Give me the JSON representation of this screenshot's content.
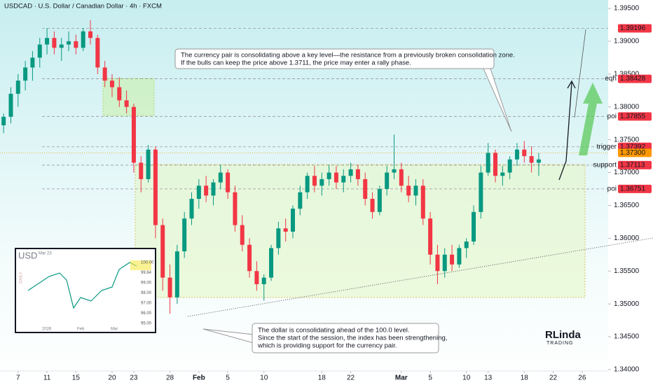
{
  "header": {
    "title": "USDCAD · U.S. Dollar / Canadian Dollar · 4h · FXCM"
  },
  "chart_data": {
    "type": "candlestick",
    "x": [
      5,
      6,
      7,
      8,
      9,
      10,
      11,
      12,
      13,
      14,
      15,
      16,
      17,
      18,
      19,
      20,
      21,
      22,
      23,
      24,
      25,
      26,
      27,
      28,
      29,
      30,
      31,
      32,
      33,
      34,
      35,
      36,
      37,
      38,
      39,
      40,
      41,
      42,
      43,
      44,
      45,
      46,
      47,
      48,
      49,
      50,
      51,
      52,
      53,
      54,
      55,
      56,
      57,
      58,
      59,
      60,
      61,
      62,
      63,
      64,
      65,
      66,
      67,
      68,
      69,
      70,
      71,
      72,
      73,
      74,
      75,
      76,
      77,
      78,
      79
    ],
    "open": [
      1.3772,
      1.3785,
      1.382,
      1.384,
      1.386,
      1.3875,
      1.3895,
      1.3905,
      1.389,
      1.3895,
      1.39,
      1.389,
      1.3915,
      1.3905,
      1.386,
      1.384,
      1.383,
      1.381,
      1.38,
      1.3715,
      1.369,
      1.3735,
      1.362,
      1.354,
      1.351,
      1.358,
      1.363,
      1.366,
      1.368,
      1.3665,
      1.3685,
      1.37,
      1.367,
      1.362,
      1.359,
      1.355,
      1.353,
      1.354,
      1.3585,
      1.3615,
      1.361,
      1.3645,
      1.367,
      1.3695,
      1.368,
      1.369,
      1.37,
      1.3685,
      1.3695,
      1.3705,
      1.369,
      1.366,
      1.364,
      1.3675,
      1.37,
      1.3705,
      1.368,
      1.3665,
      1.368,
      1.363,
      1.3575,
      1.355,
      1.3575,
      1.356,
      1.3585,
      1.3595,
      1.364,
      1.37,
      1.373,
      1.3695,
      1.37,
      1.372,
      1.3735,
      1.3725,
      1.3715
    ],
    "high": [
      1.379,
      1.383,
      1.385,
      1.387,
      1.3885,
      1.3905,
      1.392,
      1.3915,
      1.3905,
      1.3915,
      1.391,
      1.392,
      1.3932,
      1.391,
      1.387,
      1.385,
      1.3845,
      1.3825,
      1.3805,
      1.3725,
      1.3742,
      1.374,
      1.363,
      1.356,
      1.359,
      1.364,
      1.367,
      1.369,
      1.3695,
      1.369,
      1.3712,
      1.3705,
      1.368,
      1.3635,
      1.36,
      1.3565,
      1.3545,
      1.359,
      1.3625,
      1.363,
      1.365,
      1.368,
      1.37,
      1.371,
      1.37,
      1.3712,
      1.371,
      1.3705,
      1.3715,
      1.3712,
      1.37,
      1.367,
      1.368,
      1.371,
      1.3758,
      1.3715,
      1.3695,
      1.369,
      1.369,
      1.364,
      1.359,
      1.3585,
      1.359,
      1.359,
      1.36,
      1.365,
      1.371,
      1.3745,
      1.3735,
      1.371,
      1.3725,
      1.3745,
      1.3748,
      1.374,
      1.373
    ],
    "low": [
      1.376,
      1.3775,
      1.38,
      1.3825,
      1.384,
      1.386,
      1.388,
      1.388,
      1.387,
      1.3885,
      1.388,
      1.3885,
      1.3895,
      1.385,
      1.383,
      1.3815,
      1.38,
      1.379,
      1.37,
      1.367,
      1.3685,
      1.36,
      1.352,
      1.3485,
      1.35,
      1.357,
      1.362,
      1.3645,
      1.3655,
      1.365,
      1.3675,
      1.366,
      1.361,
      1.358,
      1.354,
      1.352,
      1.3505,
      1.3535,
      1.3575,
      1.3595,
      1.36,
      1.3635,
      1.366,
      1.367,
      1.3665,
      1.368,
      1.3675,
      1.367,
      1.3685,
      1.368,
      1.365,
      1.363,
      1.3635,
      1.3665,
      1.369,
      1.367,
      1.3655,
      1.365,
      1.362,
      1.356,
      1.353,
      1.354,
      1.355,
      1.3555,
      1.357,
      1.359,
      1.363,
      1.3695,
      1.3685,
      1.368,
      1.369,
      1.371,
      1.3715,
      1.37,
      1.3695
    ],
    "close": [
      1.3785,
      1.382,
      1.384,
      1.386,
      1.3875,
      1.3895,
      1.3905,
      1.389,
      1.3895,
      1.39,
      1.389,
      1.3915,
      1.3905,
      1.386,
      1.384,
      1.383,
      1.381,
      1.38,
      1.3715,
      1.369,
      1.3735,
      1.362,
      1.354,
      1.351,
      1.358,
      1.363,
      1.366,
      1.368,
      1.3665,
      1.3685,
      1.37,
      1.367,
      1.362,
      1.359,
      1.355,
      1.353,
      1.354,
      1.3585,
      1.3615,
      1.361,
      1.3645,
      1.367,
      1.3695,
      1.368,
      1.369,
      1.37,
      1.3685,
      1.3695,
      1.3705,
      1.369,
      1.366,
      1.364,
      1.3675,
      1.37,
      1.3705,
      1.368,
      1.3665,
      1.368,
      1.363,
      1.3575,
      1.355,
      1.3575,
      1.356,
      1.3585,
      1.3595,
      1.364,
      1.37,
      1.373,
      1.3695,
      1.37,
      1.372,
      1.3735,
      1.3725,
      1.3715,
      1.372
    ],
    "up_color": "#089981",
    "down_color": "#f23645",
    "xlim": [
      4.5,
      88.6
    ],
    "xticks": [
      7,
      11,
      15,
      20,
      23,
      28,
      {
        "value": 32,
        "label": "Feb"
      },
      {
        "value": 36,
        "label": "5"
      },
      {
        "value": 41,
        "label": "10"
      },
      {
        "value": 49,
        "label": "18"
      },
      {
        "value": 53,
        "label": "22"
      },
      {
        "value": 60,
        "label": "Mar"
      },
      {
        "value": 64,
        "label": "5"
      },
      {
        "value": 69,
        "label": "10"
      },
      {
        "value": 72,
        "label": "13"
      },
      {
        "value": 77,
        "label": "18"
      },
      {
        "value": 81,
        "label": "22"
      },
      {
        "value": 85,
        "label": "26"
      }
    ],
    "ylim": [
      1.33765,
      1.39628
    ],
    "yticks": [
      {
        "value": 1.395,
        "label": "1.39500"
      },
      {
        "value": 1.39,
        "label": "1.39000"
      },
      {
        "value": 1.385,
        "label": "1.38500"
      },
      {
        "value": 1.38,
        "label": "1.38000"
      },
      {
        "value": 1.375,
        "label": "1.37500"
      },
      {
        "value": 1.37,
        "label": "1.37000"
      },
      {
        "value": 1.365,
        "label": "1.36500"
      },
      {
        "value": 1.36,
        "label": "1.36000"
      },
      {
        "value": 1.355,
        "label": "1.35500"
      },
      {
        "value": 1.35,
        "label": "1.35000"
      },
      {
        "value": 1.345,
        "label": "1.34500"
      },
      {
        "value": 1.34,
        "label": "1.34000"
      }
    ],
    "levels": [
      {
        "value": 1.39196,
        "label": "1.39196",
        "color": "#f23645"
      },
      {
        "value": 1.38428,
        "label": "1.38428",
        "color": "#f23645",
        "name": "eqh"
      },
      {
        "value": 1.37855,
        "label": "1.37855",
        "color": "#f23645",
        "name": "poi"
      },
      {
        "value": 1.37392,
        "label": "1.37392",
        "color": "#f23645",
        "name": "trigger"
      },
      {
        "value": 1.373,
        "label": "1.37300",
        "color": "#ff9800"
      },
      {
        "value": 1.37113,
        "label": "1.37113",
        "color": "#f23645",
        "name": "support"
      },
      {
        "value": 1.36751,
        "label": "1.36751",
        "color": "#f23645",
        "name": "poi"
      }
    ]
  },
  "annotations": [
    {
      "lines": [
        "The currency pair is consolidating above a key level—the resistance from a previously broken consolidation zone.",
        "If the bulls can keep the price above 1.3711, the price may enter a rally phase."
      ]
    },
    {
      "lines": [
        "The dollar is consolidating ahead of the 100.0 level.",
        "Since the start of the session, the index has been strengthening,",
        "which is providing support for the currency pair."
      ]
    }
  ],
  "logo": [
    "RLinda",
    "TRADING"
  ],
  "inset": {
    "title": "USD",
    "date": "Mar 23",
    "side": "DAILY",
    "price_labels": [
      "100.00",
      "99.64",
      "99.00",
      "98.00",
      "97.00",
      "96.00",
      "95.00"
    ],
    "time_labels": [
      "2026",
      "Feb",
      "Mar"
    ]
  }
}
